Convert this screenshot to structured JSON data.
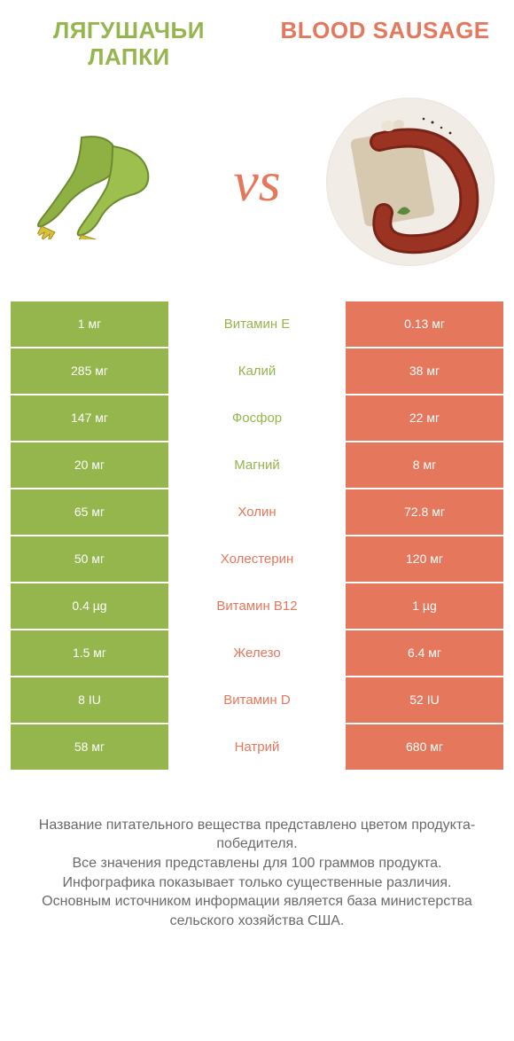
{
  "colors": {
    "left": "#95b54d",
    "right": "#e5775c",
    "mid_left_text": "#95b54d",
    "mid_right_text": "#e5775c"
  },
  "titles": {
    "left": "ЛЯГУШАЧЬИ ЛАПКИ",
    "right": "BLOOD SAUSAGE"
  },
  "vs": "vs",
  "rows": [
    {
      "left": "1 мг",
      "mid": "Витамин E",
      "right": "0.13 мг",
      "winner": "left"
    },
    {
      "left": "285 мг",
      "mid": "Калий",
      "right": "38 мг",
      "winner": "left"
    },
    {
      "left": "147 мг",
      "mid": "Фосфор",
      "right": "22 мг",
      "winner": "left"
    },
    {
      "left": "20 мг",
      "mid": "Магний",
      "right": "8 мг",
      "winner": "left"
    },
    {
      "left": "65 мг",
      "mid": "Холин",
      "right": "72.8 мг",
      "winner": "right"
    },
    {
      "left": "50 мг",
      "mid": "Холестерин",
      "right": "120 мг",
      "winner": "right"
    },
    {
      "left": "0.4 µg",
      "mid": "Витамин B12",
      "right": "1 µg",
      "winner": "right"
    },
    {
      "left": "1.5 мг",
      "mid": "Железо",
      "right": "6.4 мг",
      "winner": "right"
    },
    {
      "left": "8 IU",
      "mid": "Витамин D",
      "right": "52 IU",
      "winner": "right"
    },
    {
      "left": "58 мг",
      "mid": "Натрий",
      "right": "680 мг",
      "winner": "right"
    }
  ],
  "footer": {
    "line1": "Название питательного вещества представлено цветом продукта-победителя.",
    "line2": "Все значения представлены для 100 граммов продукта.",
    "line3": "Инфографика показывает только существенные различия.",
    "line4": "Основным источником информации является база министерства сельского хозяйства США."
  }
}
